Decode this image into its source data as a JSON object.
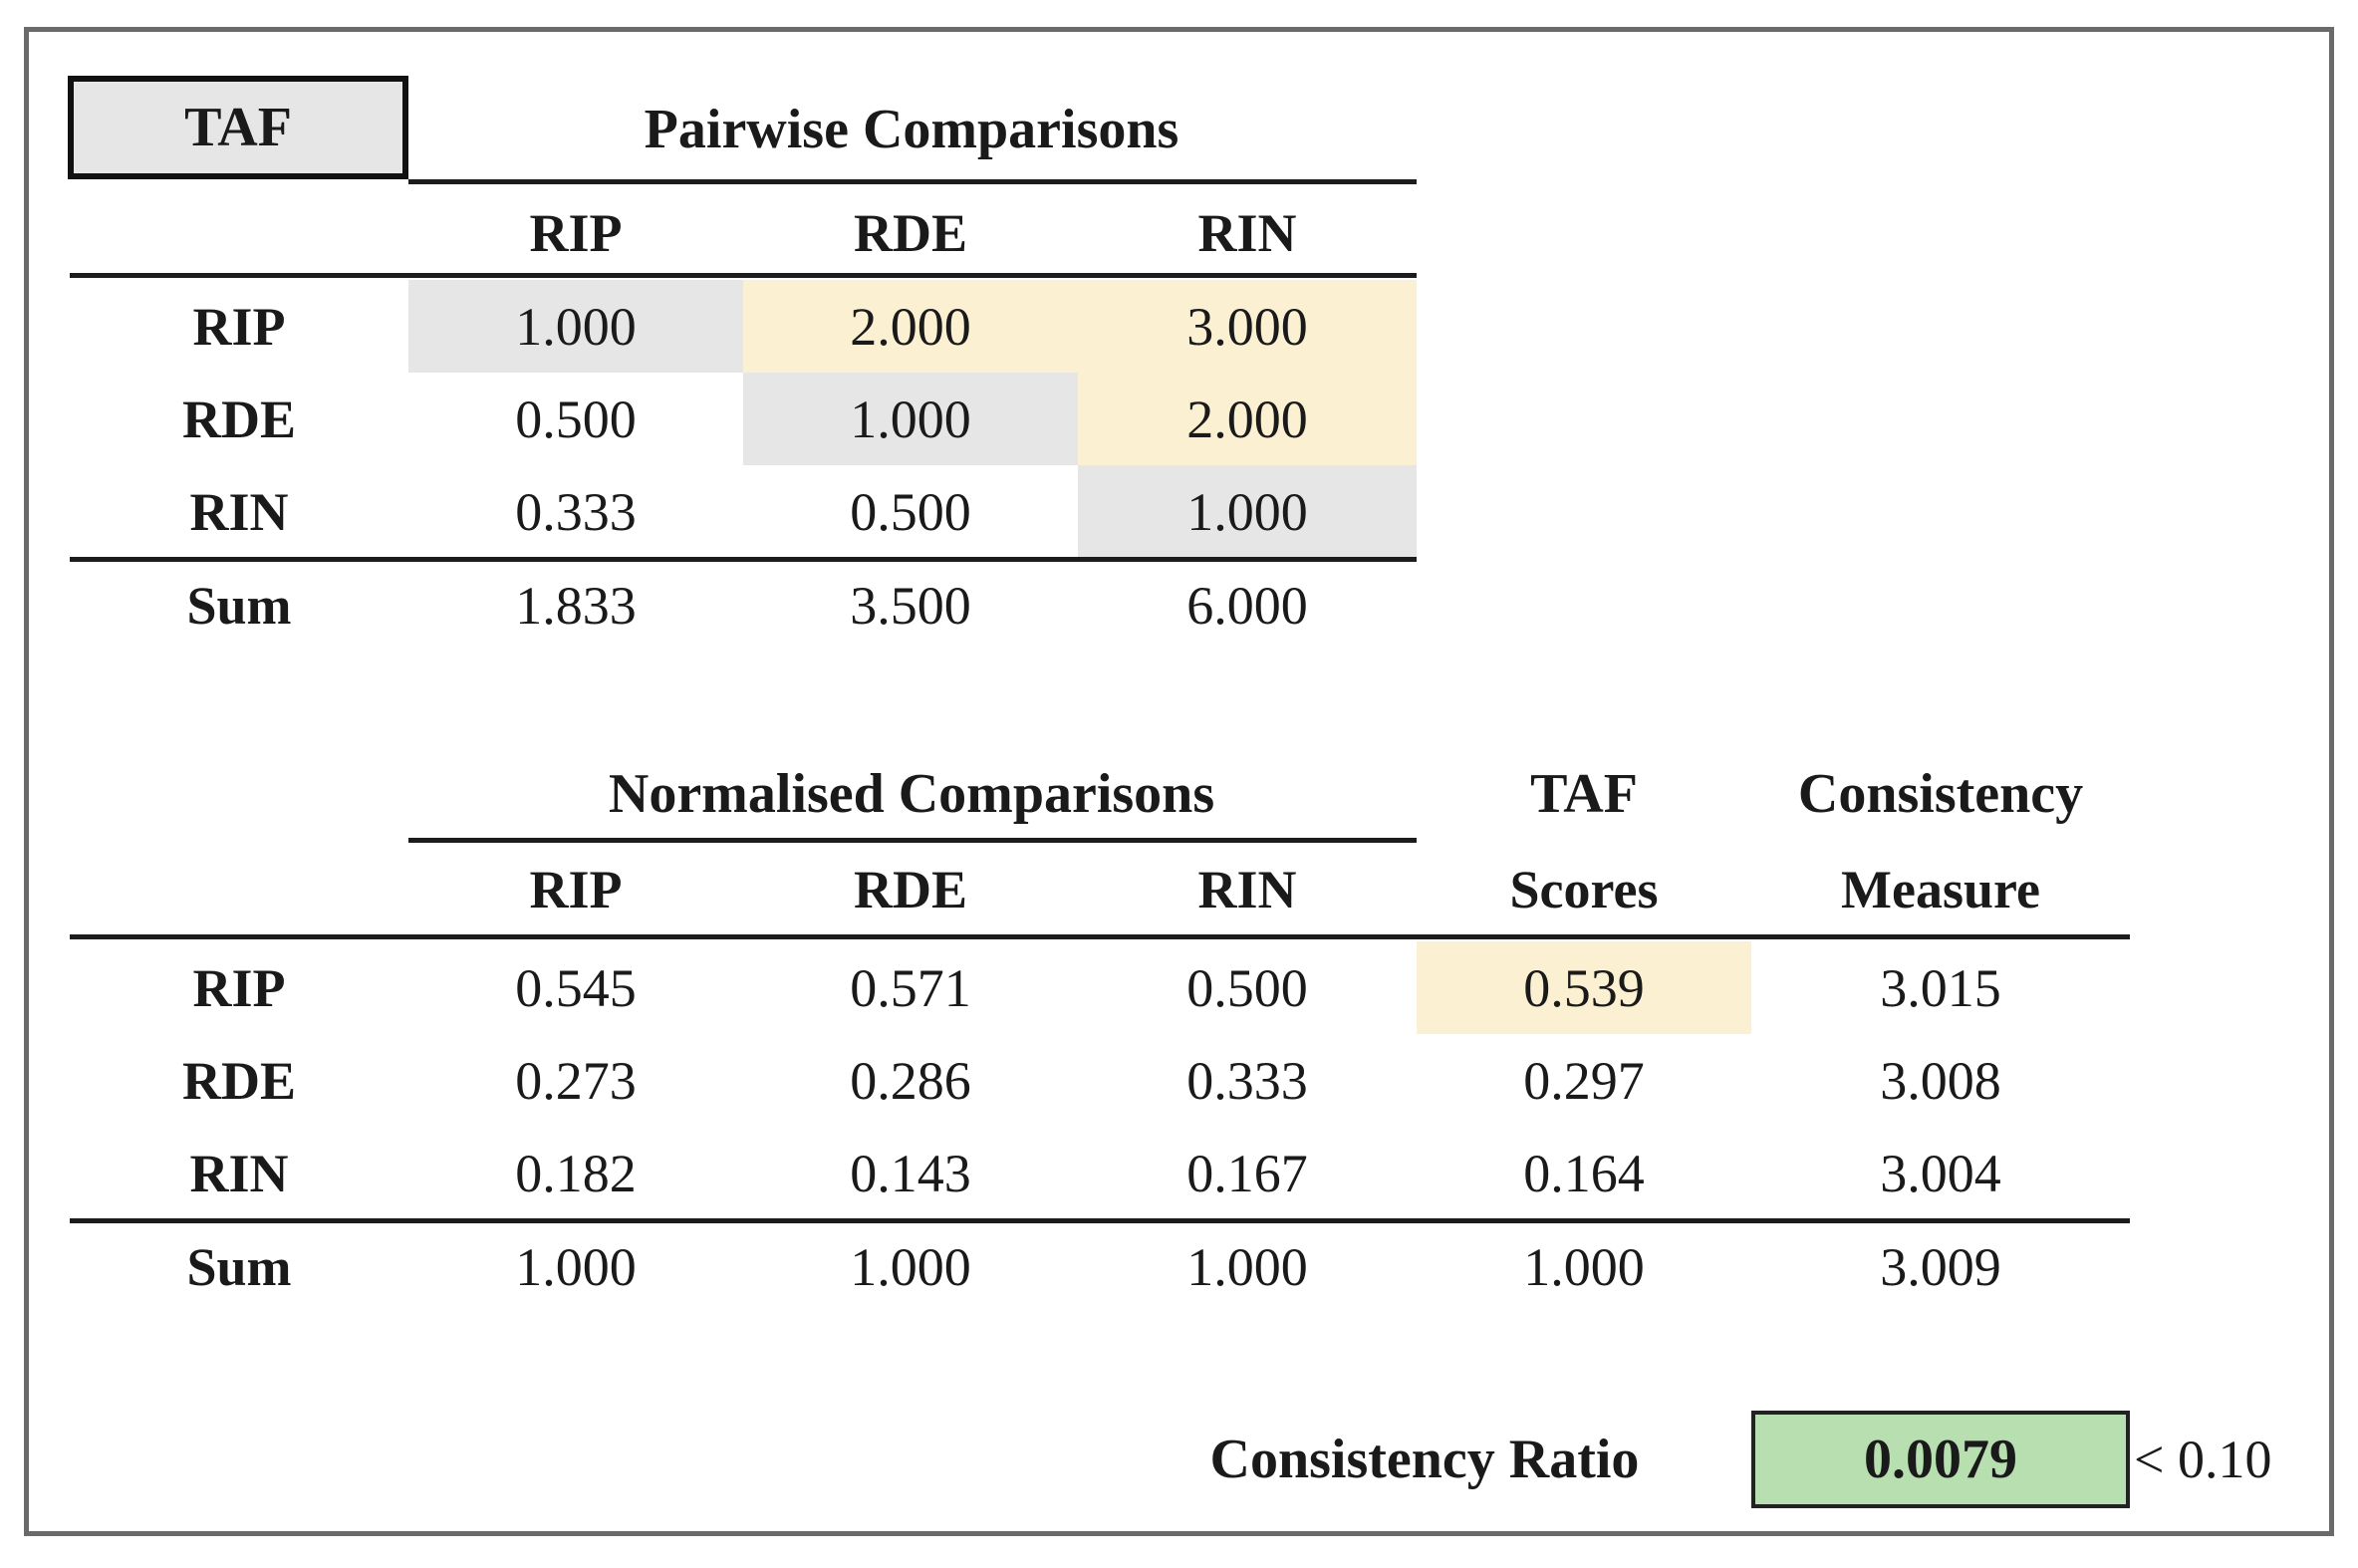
{
  "taf_label": "TAF",
  "pairwise": {
    "title": "Pairwise Comparisons",
    "columns": [
      "RIP",
      "RDE",
      "RIN"
    ],
    "rows": [
      {
        "label": "RIP",
        "values": [
          "1.000",
          "2.000",
          "3.000"
        ]
      },
      {
        "label": "RDE",
        "values": [
          "0.500",
          "1.000",
          "2.000"
        ]
      },
      {
        "label": "RIN",
        "values": [
          "0.333",
          "0.500",
          "1.000"
        ]
      }
    ],
    "sum": {
      "label": "Sum",
      "values": [
        "1.833",
        "3.500",
        "6.000"
      ]
    }
  },
  "normalised": {
    "title": "Normalised Comparisons",
    "columns": [
      "RIP",
      "RDE",
      "RIN"
    ],
    "scores_header": [
      "TAF",
      "Scores"
    ],
    "consistency_header": [
      "Consistency",
      "Measure"
    ],
    "rows": [
      {
        "label": "RIP",
        "values": [
          "0.545",
          "0.571",
          "0.500"
        ],
        "score": "0.539",
        "consistency": "3.015"
      },
      {
        "label": "RDE",
        "values": [
          "0.273",
          "0.286",
          "0.333"
        ],
        "score": "0.297",
        "consistency": "3.008"
      },
      {
        "label": "RIN",
        "values": [
          "0.182",
          "0.143",
          "0.167"
        ],
        "score": "0.164",
        "consistency": "3.004"
      }
    ],
    "sum": {
      "label": "Sum",
      "values": [
        "1.000",
        "1.000",
        "1.000"
      ],
      "score": "1.000",
      "consistency": "3.009"
    }
  },
  "consistency_ratio": {
    "label": "Consistency Ratio",
    "value": "0.0079",
    "threshold": "< 0.10"
  },
  "colors": {
    "diagonal": "#e6e6e6",
    "upper_triangle": "#fcf0d2",
    "ratio_ok": "#b7dfb0"
  }
}
